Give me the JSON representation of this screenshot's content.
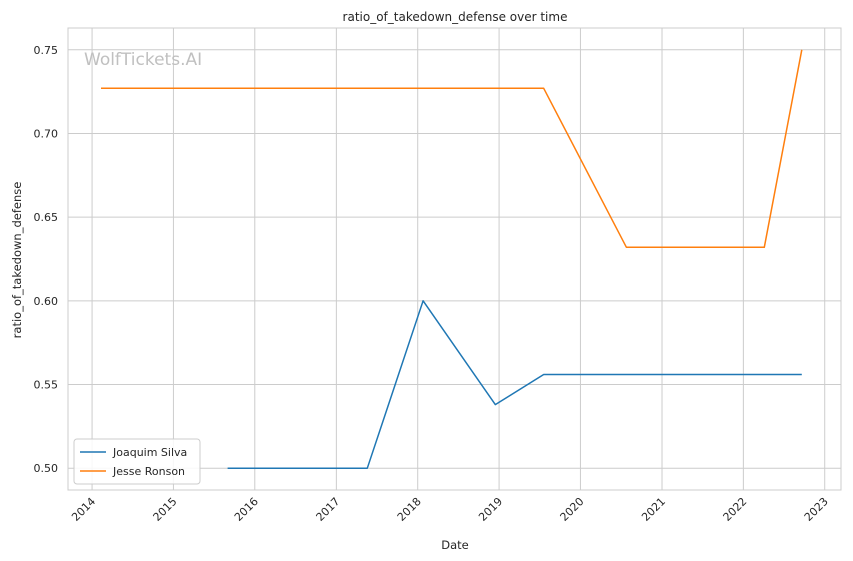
{
  "chart_data": {
    "type": "line",
    "title": "ratio_of_takedown_defense over time",
    "xlabel": "Date",
    "ylabel": "ratio_of_takedown_defense",
    "watermark": "WolfTickets.AI",
    "xlim": [
      "2013-09-15",
      "2023-03-15"
    ],
    "ylim": [
      0.487,
      0.763
    ],
    "x_ticks": [
      "2014",
      "2015",
      "2016",
      "2017",
      "2018",
      "2019",
      "2020",
      "2021",
      "2022",
      "2023"
    ],
    "y_ticks": [
      "0.50",
      "0.55",
      "0.60",
      "0.65",
      "0.70",
      "0.75"
    ],
    "grid": true,
    "legend_position": "lower-left",
    "series": [
      {
        "name": "Joaquim Silva",
        "color": "#1f77b4",
        "points": [
          {
            "x": "2015-09-01",
            "y": 0.5
          },
          {
            "x": "2017-05-20",
            "y": 0.5
          },
          {
            "x": "2018-01-25",
            "y": 0.6
          },
          {
            "x": "2018-12-15",
            "y": 0.538
          },
          {
            "x": "2019-07-20",
            "y": 0.556
          },
          {
            "x": "2022-09-20",
            "y": 0.556
          }
        ]
      },
      {
        "name": "Jesse Ronson",
        "color": "#ff7f0e",
        "points": [
          {
            "x": "2014-02-10",
            "y": 0.727
          },
          {
            "x": "2019-07-20",
            "y": 0.727
          },
          {
            "x": "2020-07-25",
            "y": 0.632
          },
          {
            "x": "2022-04-05",
            "y": 0.632
          },
          {
            "x": "2022-09-20",
            "y": 0.75
          }
        ]
      }
    ]
  }
}
